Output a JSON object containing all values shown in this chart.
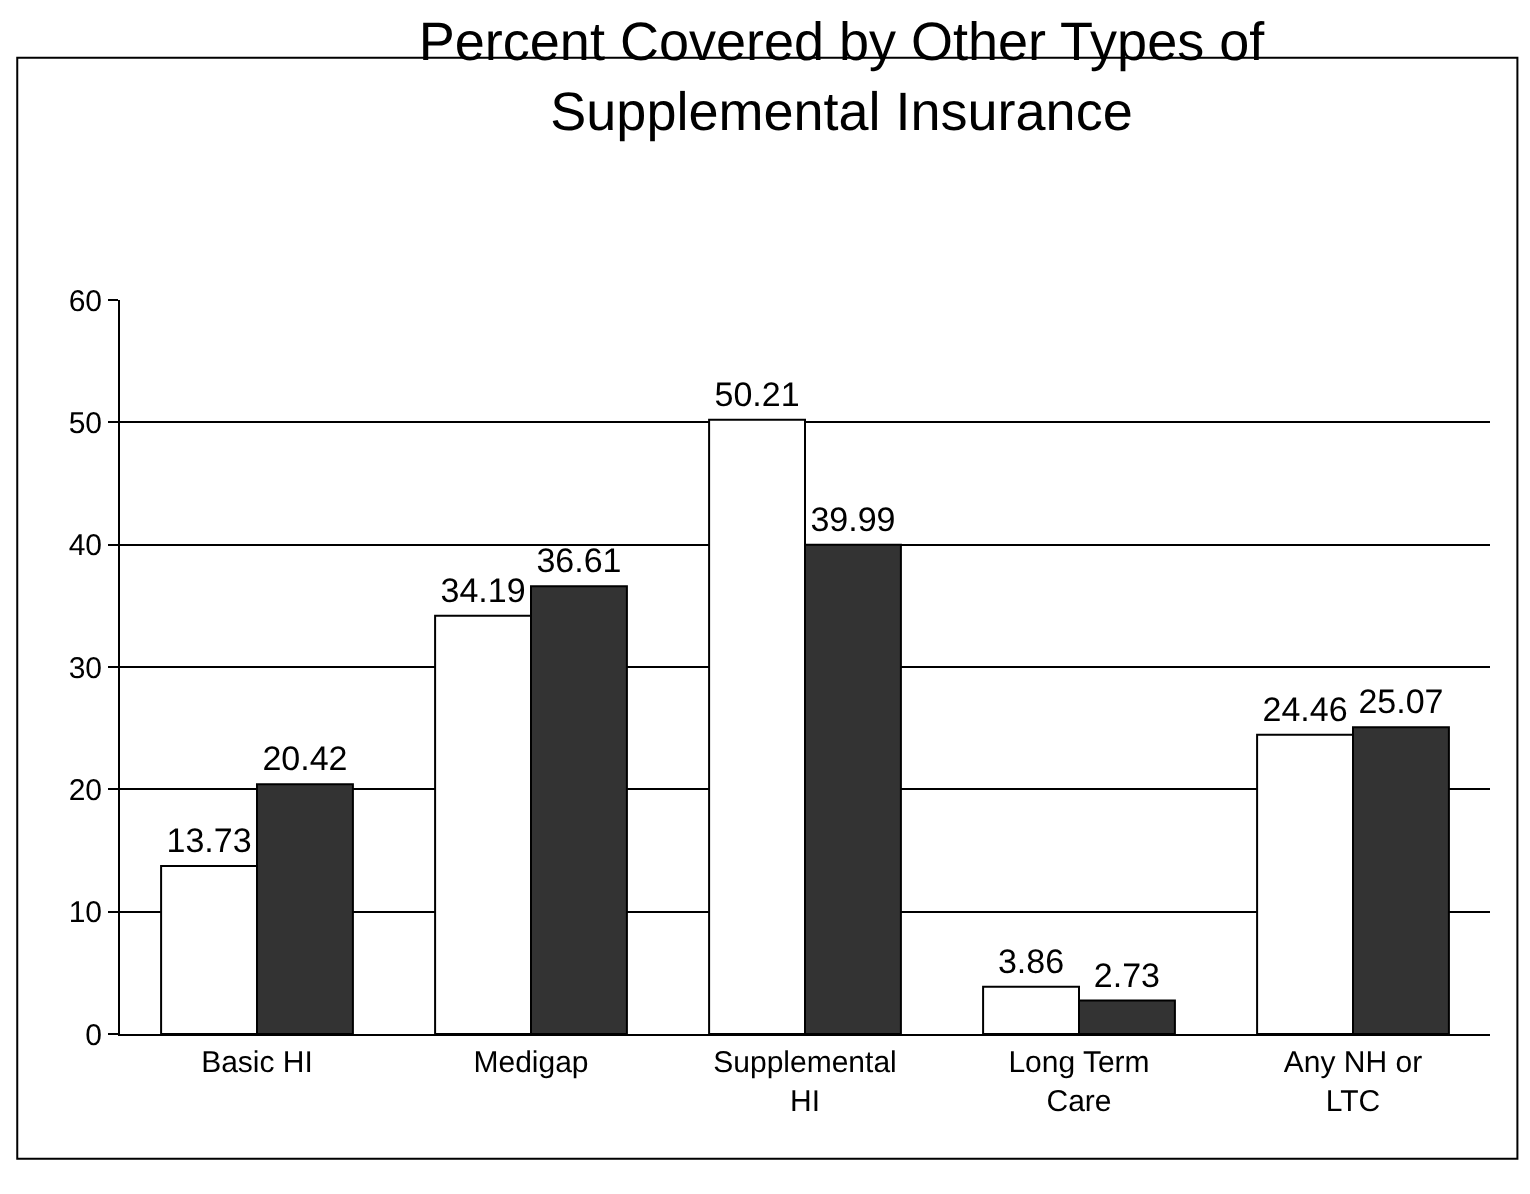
{
  "chart_data": {
    "type": "bar",
    "title": "Percent Covered by Other Types of Supplemental Insurance",
    "categories": [
      "Basic HI",
      "Medigap",
      "Supplemental HI",
      "Long Term Care",
      "Any NH or LTC"
    ],
    "series": [
      {
        "color": "#ffffff",
        "values": [
          13.73,
          34.19,
          50.21,
          3.86,
          24.46
        ]
      },
      {
        "color": "#333333",
        "values": [
          20.42,
          36.61,
          39.99,
          2.73,
          25.07
        ]
      }
    ],
    "ylim": [
      0,
      60
    ],
    "yticks": [
      0,
      10,
      20,
      30,
      40,
      50,
      60
    ],
    "grid": "y",
    "data_labels": true
  }
}
